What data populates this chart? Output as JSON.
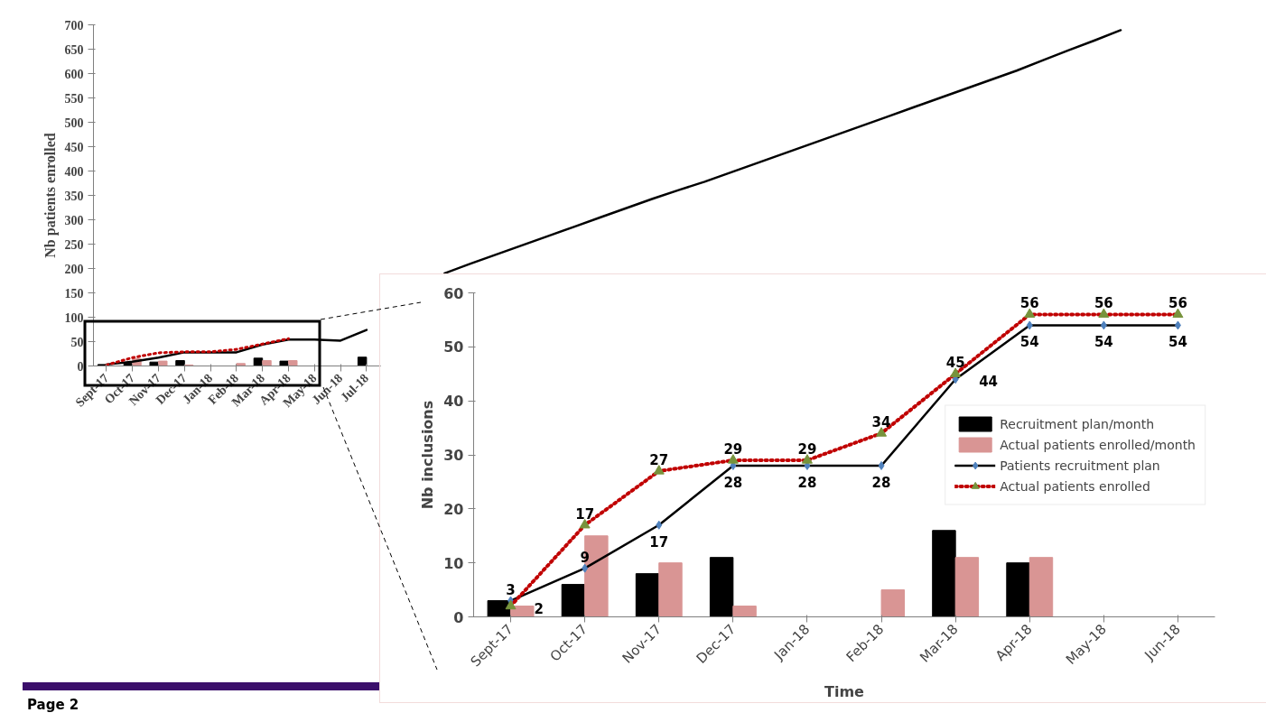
{
  "chart_data": [
    {
      "type": "bar",
      "ylabel": "Nb patients enrolled",
      "ylim": [
        0,
        700
      ],
      "yticks": [
        0,
        50,
        100,
        150,
        200,
        250,
        300,
        350,
        400,
        450,
        500,
        550,
        600,
        650,
        700
      ],
      "grid": false,
      "legend": false,
      "annotations": [
        "Page 2"
      ],
      "categories": [
        "Sept-17",
        "Oct-17",
        "Nov-17",
        "Dec-17",
        "Jan-18",
        "Feb-18",
        "Mar-18",
        "Apr-18",
        "May-18",
        "Jun-18",
        "Jul-18",
        null,
        null,
        null,
        null,
        null,
        null,
        null,
        null,
        null,
        null,
        null,
        null,
        null,
        null,
        null,
        null,
        null,
        null,
        null,
        null,
        null,
        null,
        null,
        null,
        null,
        null,
        null,
        null,
        null
      ],
      "series": [
        {
          "color": "#000000",
          "values": [
            3,
            6,
            8,
            11,
            null,
            null,
            16,
            10,
            null,
            null,
            18,
            null,
            null,
            null,
            null,
            null,
            null,
            null,
            null,
            null,
            null,
            null,
            null,
            null,
            null,
            null,
            null,
            null,
            null,
            null,
            null,
            null,
            null,
            null,
            null,
            null,
            null,
            null,
            null,
            null
          ]
        },
        {
          "color": "#d99594",
          "values": [
            null,
            15,
            10,
            2,
            null,
            5,
            11,
            11,
            null,
            null,
            null,
            null,
            null,
            null,
            null,
            null,
            null,
            null,
            null,
            null,
            null,
            null,
            null,
            null,
            null,
            null,
            null,
            null,
            null,
            null,
            null,
            null,
            null,
            null,
            null,
            null,
            null,
            null,
            null,
            null
          ]
        },
        {
          "type": "line",
          "color": "#000000",
          "line_style": "solid",
          "values": [
            3,
            9,
            17,
            28,
            28,
            28,
            44,
            54,
            54,
            52,
            74,
            null,
            null,
            190,
            210,
            229,
            248,
            267,
            286,
            305,
            324,
            343,
            361,
            378,
            397,
            416,
            435,
            454,
            473,
            492,
            511,
            530,
            549,
            568,
            587,
            606,
            627,
            648,
            668,
            689
          ]
        },
        {
          "type": "line",
          "color": "#c00000",
          "line_style": "dotted",
          "values": [
            2,
            17,
            27,
            29,
            29,
            34,
            45,
            56,
            null,
            null,
            null,
            null,
            null,
            null,
            null,
            null,
            null,
            null,
            null,
            null,
            null,
            null,
            null,
            null,
            null,
            null,
            null,
            null,
            null,
            null,
            null,
            null,
            null,
            null,
            null,
            null,
            null,
            null,
            null,
            null
          ]
        }
      ]
    },
    {
      "type": "bar",
      "xlabel": "Time",
      "ylabel": "Nb inclusions",
      "ylim": [
        0,
        60
      ],
      "yticks": [
        0,
        10,
        20,
        30,
        40,
        50,
        60
      ],
      "grid": false,
      "legend": "right",
      "categories": [
        "Sept-17",
        "Oct-17",
        "Nov-17",
        "Dec-17",
        "Jan-18",
        "Feb-18",
        "Mar-18",
        "Apr-18",
        "May-18",
        "Jun-18"
      ],
      "series": [
        {
          "name": "Recruitment plan/month",
          "color": "#000000",
          "values": [
            3,
            6,
            8,
            11,
            null,
            null,
            16,
            10,
            null,
            null
          ]
        },
        {
          "name": "Actual patients enrolled/month",
          "color": "#d99594",
          "values": [
            2,
            15,
            10,
            2,
            null,
            5,
            11,
            11,
            null,
            null
          ]
        },
        {
          "name": "Patients recruitment plan",
          "type": "line",
          "color": "#000000",
          "line_style": "solid",
          "marker": "diamond",
          "values": [
            3,
            9,
            17,
            28,
            28,
            28,
            44,
            54,
            54,
            54
          ],
          "value_labels": [
            "3",
            "9",
            "17",
            "28",
            "28",
            "28",
            "44",
            "54",
            "54",
            "54"
          ]
        },
        {
          "name": "Actual patients enrolled",
          "type": "line",
          "color": "#c00000",
          "line_style": "dotted",
          "marker": "triangle",
          "values": [
            2,
            17,
            27,
            29,
            29,
            34,
            45,
            56,
            56,
            56
          ],
          "value_labels": [
            "2",
            "17",
            "27",
            "29",
            "29",
            "34",
            "45",
            "56",
            "56",
            "56"
          ]
        }
      ]
    }
  ]
}
